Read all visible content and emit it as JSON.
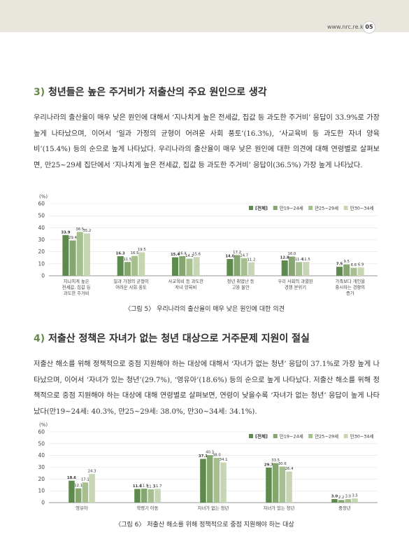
{
  "header": {
    "site": "www.nrc.re.kr",
    "page_number": "05"
  },
  "section3": {
    "number": "3)",
    "title": "청년들은 높은 주거비가 저출산의 주요 원인으로 생각",
    "paragraph": "우리나라의 출산율이 매우 낮은 원인에 대해서 ‘지나치게 높은 전세값, 집값 등 과도한 주거비’ 응답이 33.9%로 가장 높게 나타났으며, 이어서 ‘일과 가정의 균형이 어려운 사회 풍토’(16.3%), ‘사교육비 등 과도한 자녀 양육비’(15.4%) 등의 순으로 높게 나타났다. 우리나라의 출산율이 매우 낮은 원인에 대한 의견에 대해 연령별로 살펴보면, 만25~29세 집단에서 ‘지나치게 높은 전세값, 집값 등 과도한 주거비’ 응답이(36.5%) 가장 높게 나타났다."
  },
  "section4": {
    "number": "4)",
    "title": "저출산 정책은 자녀가 없는 청년 대상으로 거주문제 지원이 절실",
    "paragraph": "저출산 해소를 위해 정책적으로 중점 지원해야 하는 대상에 대해서 ‘자녀가 없는 청년’ 응답이 37.1%로 가장 높게 나타났으며, 이어서 ‘자녀가 있는 청년’(29.7%), ‘영유아’(18.6%) 등의 순으로 높게 나타났다. 저출산 해소를 위해 정책적으로 중점 지원해야 하는 대상에 대해 연령별로 살펴보면, 연령이 낮을수록 ‘자녀가 없는 청년’ 응답이 높게 나타났다(만19~24세: 40.3%, 만25~29세: 38.0%, 만30~34세: 34.1%)."
  },
  "colors": [
    "#5e8a4e",
    "#86a670",
    "#a6bf8e",
    "#c6d6b3"
  ],
  "chart_data": [
    {
      "type": "bar",
      "title": "〈그림 5〉 우리나라의 출산율이 매우 낮은 원인에 대한 의견",
      "yunit": "(%)",
      "ylim": [
        0,
        60
      ],
      "yticks": [
        "0",
        "10",
        "20",
        "30",
        "40",
        "50",
        "60"
      ],
      "categories": [
        [
          "지나치게 높은",
          "전세값, 집값 등",
          "과도한 주거비"
        ],
        [
          "일과 가정의 균형이",
          "어려운 사회 풍토"
        ],
        [
          "사교육비 등 과도한",
          "자녀 양육비"
        ],
        [
          "청년 취업난 등",
          "고용 불안"
        ],
        [
          "우리 사회의 과열된",
          "경쟁 분위기"
        ],
        [
          "가족보다 개인을",
          "중시하는 경향의",
          "증가"
        ]
      ],
      "series": [
        {
          "name": "[전체]",
          "values": [
            33.9,
            16.3,
            15.4,
            14.0,
            12.8,
            7.5
          ],
          "labels": [
            "33.9",
            "16.3",
            "15.4",
            "14.0",
            "12.8",
            "7.5"
          ]
        },
        {
          "name": "만19~24세",
          "values": [
            29.4,
            11.5,
            16.4,
            17.2,
            16.0,
            9.5
          ],
          "labels": [
            "29.4",
            "11.5",
            "16.4",
            "17.2",
            "16.0",
            "9.5"
          ]
        },
        {
          "name": "만25~29세",
          "values": [
            36.5,
            16.5,
            14.2,
            14.7,
            11.4,
            6.6
          ],
          "labels": [
            "36.5",
            "16.5",
            "14.2",
            "14.7",
            "11.4",
            "6.6"
          ]
        },
        {
          "name": "만30~34세",
          "values": [
            35.2,
            19.5,
            15.6,
            11.2,
            11.5,
            6.9
          ],
          "labels": [
            "35.2",
            "19.5",
            "15.6",
            "11.2",
            "11.5",
            "6.9"
          ]
        }
      ]
    },
    {
      "type": "bar",
      "title": "〈그림 6〉 저출산 해소를 위해 정책적으로 중점 지원해야 하는 대상",
      "yunit": "(%)",
      "ylim": [
        0,
        60
      ],
      "yticks": [
        "0",
        "10",
        "20",
        "30",
        "40",
        "50",
        "60"
      ],
      "categories": [
        [
          "영유아"
        ],
        [
          "학령기 아동"
        ],
        [
          "자녀가 없는 청년"
        ],
        [
          "자녀가 있는 청년"
        ],
        [
          "중장년"
        ]
      ],
      "series": [
        {
          "name": "[전체]",
          "values": [
            18.6,
            11.6,
            37.1,
            29.7,
            3.0
          ],
          "labels": [
            "18.6",
            "11.6",
            "37.1",
            "29.7",
            "3.0"
          ]
        },
        {
          "name": "만19~24세",
          "values": [
            12.1,
            11.9,
            40.3,
            33.5,
            2.2
          ],
          "labels": [
            "12.1",
            "11.9",
            "40.3",
            "33.5",
            "2.2"
          ]
        },
        {
          "name": "만25~29세",
          "values": [
            17.1,
            11.3,
            38.0,
            30.6,
            3.0
          ],
          "labels": [
            "17.1",
            "11.3",
            "38.0",
            "30.6",
            "3.0"
          ]
        },
        {
          "name": "만30~34세",
          "values": [
            24.3,
            11.7,
            34.1,
            26.4,
            3.5
          ],
          "labels": [
            "24.3",
            "11.7",
            "34.1",
            "26.4",
            "3.5"
          ]
        }
      ]
    }
  ]
}
